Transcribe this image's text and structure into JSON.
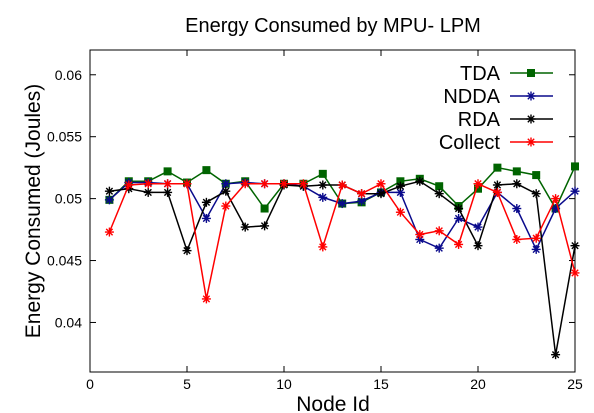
{
  "chart_data": {
    "type": "line",
    "title": "Energy Consumed by MPU- LPM",
    "xlabel": "Node Id",
    "ylabel": "Energy Consumed (Joules)",
    "xlim": [
      0,
      25
    ],
    "ylim": [
      0.036,
      0.062
    ],
    "xticks": [
      "0",
      "5",
      "10",
      "15",
      "20",
      "25"
    ],
    "yticks": [
      "0.04",
      "0.045",
      "0.05",
      "0.055",
      "0.06"
    ],
    "xtick_values": [
      0,
      5,
      10,
      15,
      20,
      25
    ],
    "ytick_values": [
      0.04,
      0.045,
      0.05,
      0.055,
      0.06
    ],
    "grid": false,
    "legend_position": "top-right",
    "x": [
      1,
      2,
      3,
      4,
      5,
      6,
      7,
      8,
      9,
      10,
      11,
      12,
      13,
      14,
      15,
      16,
      17,
      18,
      19,
      20,
      21,
      22,
      23,
      24,
      25
    ],
    "series": [
      {
        "name": "TDA",
        "color": "#006400",
        "marker": "square",
        "values": [
          0.0499,
          0.0514,
          0.0514,
          0.0522,
          0.0513,
          0.0523,
          0.0512,
          0.0514,
          0.0492,
          0.0512,
          0.0512,
          0.052,
          0.0496,
          0.0497,
          0.0505,
          0.0514,
          0.0516,
          0.051,
          0.0494,
          0.0508,
          0.0525,
          0.0522,
          0.0519,
          0.0492,
          0.0526
        ]
      },
      {
        "name": "NDDA",
        "color": "#0a0a8c",
        "marker": "asterisk",
        "values": [
          0.0499,
          0.0513,
          0.0513,
          0.0512,
          0.0512,
          0.0484,
          0.0512,
          0.0513,
          0.0512,
          0.0512,
          0.051,
          0.0501,
          0.0496,
          0.0498,
          0.0505,
          0.0505,
          0.0467,
          0.046,
          0.0484,
          0.0477,
          0.0505,
          0.0492,
          0.0459,
          0.0492,
          0.0506
        ]
      },
      {
        "name": "RDA",
        "color": "#000000",
        "marker": "asterisk",
        "values": [
          0.0506,
          0.0508,
          0.0505,
          0.0505,
          0.0458,
          0.0497,
          0.0506,
          0.0477,
          0.0478,
          0.0511,
          0.051,
          0.0511,
          0.0511,
          0.0504,
          0.0504,
          0.051,
          0.0514,
          0.0504,
          0.0492,
          0.0462,
          0.0511,
          0.0512,
          0.0504,
          0.0374,
          0.0462
        ]
      },
      {
        "name": "Collect",
        "color": "#ff0000",
        "marker": "asterisk",
        "values": [
          0.0473,
          0.0511,
          0.0512,
          0.0512,
          0.0512,
          0.0419,
          0.0494,
          0.0512,
          0.0512,
          0.0512,
          0.0512,
          0.0461,
          0.0511,
          0.0504,
          0.0512,
          0.0489,
          0.0471,
          0.0474,
          0.0463,
          0.0512,
          0.0505,
          0.0467,
          0.0468,
          0.05,
          0.044
        ]
      }
    ]
  }
}
